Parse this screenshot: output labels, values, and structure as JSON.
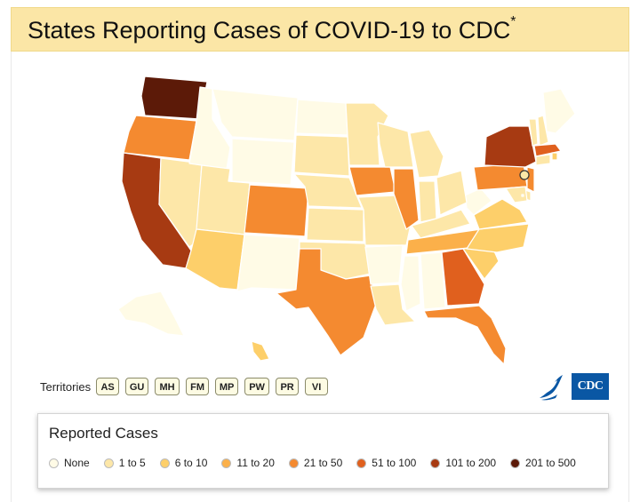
{
  "header": {
    "title": "States Reporting Cases of COVID-19 to CDC",
    "footnote_mark": "*"
  },
  "territories": {
    "label": "Territories",
    "items": [
      "AS",
      "GU",
      "MH",
      "FM",
      "MP",
      "PW",
      "PR",
      "VI"
    ]
  },
  "logos": {
    "hhs": "hhs-eagle-icon",
    "cdc_text": "CDC"
  },
  "legend": {
    "title": "Reported Cases",
    "items": [
      {
        "label": "None",
        "color": "#fffbe6"
      },
      {
        "label": "1 to 5",
        "color": "#fde7a8"
      },
      {
        "label": "6 to 10",
        "color": "#fdcf6a"
      },
      {
        "label": "11 to 20",
        "color": "#fbb04a"
      },
      {
        "label": "21 to 50",
        "color": "#f48a30"
      },
      {
        "label": "51 to 100",
        "color": "#e0601e"
      },
      {
        "label": "101 to 200",
        "color": "#a73a12"
      },
      {
        "label": "201 to 500",
        "color": "#5c1a08"
      }
    ]
  },
  "map_data": {
    "bins": [
      "None",
      "1 to 5",
      "6 to 10",
      "11 to 20",
      "21 to 50",
      "51 to 100",
      "101 to 200",
      "201 to 500"
    ],
    "states": {
      "WA": 7,
      "OR": 4,
      "CA": 6,
      "NV": 1,
      "ID": 0,
      "MT": 0,
      "WY": 0,
      "UT": 1,
      "AZ": 2,
      "CO": 4,
      "NM": 0,
      "ND": 0,
      "SD": 1,
      "NE": 1,
      "KS": 1,
      "OK": 1,
      "TX": 4,
      "MN": 1,
      "IA": 4,
      "MO": 1,
      "AR": 0,
      "LA": 1,
      "WI": 1,
      "IL": 4,
      "MI": 1,
      "IN": 1,
      "KY": 1,
      "TN": 3,
      "MS": 0,
      "AL": 0,
      "GA": 5,
      "FL": 4,
      "SC": 2,
      "NC": 2,
      "VA": 2,
      "WV": 0,
      "OH": 1,
      "PA": 4,
      "NY": 6,
      "VT": 1,
      "NH": 1,
      "ME": 0,
      "MA": 5,
      "RI": 2,
      "CT": 1,
      "NJ": 4,
      "DE": 1,
      "MD": 1,
      "DC": 1,
      "AK": 0,
      "HI": 2
    }
  }
}
